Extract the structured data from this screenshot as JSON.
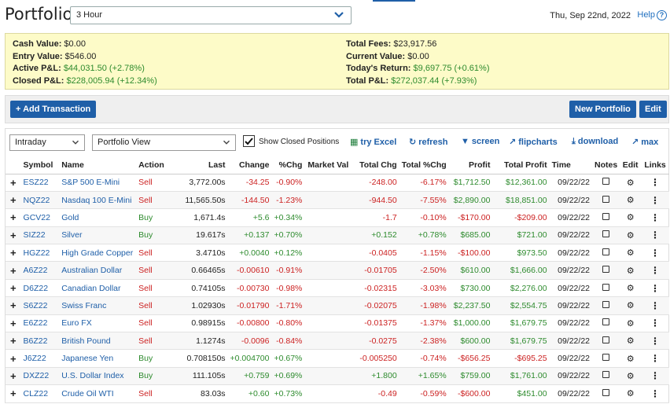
{
  "header": {
    "title": "Portfolio",
    "period": "3 Hour",
    "date": "Thu, Sep 22nd, 2022",
    "help": "Help"
  },
  "summary": {
    "left": [
      {
        "label": "Cash Value:",
        "value": "$0.00",
        "tone": ""
      },
      {
        "label": "Entry Value:",
        "value": "$546.00",
        "tone": ""
      },
      {
        "label": "Active P&L:",
        "value": "$44,031.50 (+2.78%)",
        "tone": "green"
      },
      {
        "label": "Closed P&L:",
        "value": "$228,005.94 (+12.34%)",
        "tone": "green"
      }
    ],
    "right": [
      {
        "label": "Total Fees:",
        "value": "$23,917.56",
        "tone": ""
      },
      {
        "label": "Current Value:",
        "value": "$0.00",
        "tone": ""
      },
      {
        "label": "Today's Return:",
        "value": "$9,697.75 (+0.61%)",
        "tone": "green"
      },
      {
        "label": "Total P&L:",
        "value": "$272,037.44 (+7.93%)",
        "tone": "green"
      }
    ]
  },
  "toolbar": {
    "add_transaction": "+ Add Transaction",
    "new_portfolio": "New Portfolio",
    "edit": "Edit"
  },
  "controls": {
    "time_select": "Intraday",
    "view_select": "Portfolio View",
    "show_closed_label": "Show Closed Positions",
    "show_closed_checked": true,
    "excel": "try Excel",
    "refresh": "refresh",
    "screen": "screen",
    "flipcharts": "flipcharts",
    "download": "download",
    "max": "max"
  },
  "table": {
    "headers": [
      "Symbol",
      "Name",
      "Action",
      "Last",
      "Change",
      "%Chg",
      "Market Val",
      "Total Chg",
      "Total %Chg",
      "Profit",
      "Total Profit",
      "Time",
      "Notes",
      "Edit",
      "Links"
    ],
    "rows": [
      {
        "symbol": "ESZ22",
        "name": "S&P 500 E-Mini",
        "action": "Sell",
        "last": "3,772.00s",
        "change": "-34.25",
        "pct": "-0.90%",
        "mval": "",
        "tchg": "-248.00",
        "tpct": "-6.17%",
        "profit": "$1,712.50",
        "tprofit": "$12,361.00",
        "time": "09/22/22"
      },
      {
        "symbol": "NQZ22",
        "name": "Nasdaq 100 E-Mini",
        "action": "Sell",
        "last": "11,565.50s",
        "change": "-144.50",
        "pct": "-1.23%",
        "mval": "",
        "tchg": "-944.50",
        "tpct": "-7.55%",
        "profit": "$2,890.00",
        "tprofit": "$18,851.00",
        "time": "09/22/22"
      },
      {
        "symbol": "GCV22",
        "name": "Gold",
        "action": "Buy",
        "last": "1,671.4s",
        "change": "+5.6",
        "pct": "+0.34%",
        "mval": "",
        "tchg": "-1.7",
        "tpct": "-0.10%",
        "profit": "-$170.00",
        "tprofit": "-$209.00",
        "time": "09/22/22"
      },
      {
        "symbol": "SIZ22",
        "name": "Silver",
        "action": "Buy",
        "last": "19.617s",
        "change": "+0.137",
        "pct": "+0.70%",
        "mval": "",
        "tchg": "+0.152",
        "tpct": "+0.78%",
        "profit": "$685.00",
        "tprofit": "$721.00",
        "time": "09/22/22"
      },
      {
        "symbol": "HGZ22",
        "name": "High Grade Copper",
        "action": "Sell",
        "last": "3.4710s",
        "change": "+0.0040",
        "pct": "+0.12%",
        "mval": "",
        "tchg": "-0.0405",
        "tpct": "-1.15%",
        "profit": "-$100.00",
        "tprofit": "$973.50",
        "time": "09/22/22"
      },
      {
        "symbol": "A6Z22",
        "name": "Australian Dollar",
        "action": "Sell",
        "last": "0.66465s",
        "change": "-0.00610",
        "pct": "-0.91%",
        "mval": "",
        "tchg": "-0.01705",
        "tpct": "-2.50%",
        "profit": "$610.00",
        "tprofit": "$1,666.00",
        "time": "09/22/22"
      },
      {
        "symbol": "D6Z22",
        "name": "Canadian Dollar",
        "action": "Sell",
        "last": "0.74105s",
        "change": "-0.00730",
        "pct": "-0.98%",
        "mval": "",
        "tchg": "-0.02315",
        "tpct": "-3.03%",
        "profit": "$730.00",
        "tprofit": "$2,276.00",
        "time": "09/22/22"
      },
      {
        "symbol": "S6Z22",
        "name": "Swiss Franc",
        "action": "Sell",
        "last": "1.02930s",
        "change": "-0.01790",
        "pct": "-1.71%",
        "mval": "",
        "tchg": "-0.02075",
        "tpct": "-1.98%",
        "profit": "$2,237.50",
        "tprofit": "$2,554.75",
        "time": "09/22/22"
      },
      {
        "symbol": "E6Z22",
        "name": "Euro FX",
        "action": "Sell",
        "last": "0.98915s",
        "change": "-0.00800",
        "pct": "-0.80%",
        "mval": "",
        "tchg": "-0.01375",
        "tpct": "-1.37%",
        "profit": "$1,000.00",
        "tprofit": "$1,679.75",
        "time": "09/22/22"
      },
      {
        "symbol": "B6Z22",
        "name": "British Pound",
        "action": "Sell",
        "last": "1.1274s",
        "change": "-0.0096",
        "pct": "-0.84%",
        "mval": "",
        "tchg": "-0.0275",
        "tpct": "-2.38%",
        "profit": "$600.00",
        "tprofit": "$1,679.75",
        "time": "09/22/22"
      },
      {
        "symbol": "J6Z22",
        "name": "Japanese Yen",
        "action": "Buy",
        "last": "0.708150s",
        "change": "+0.004700",
        "pct": "+0.67%",
        "mval": "",
        "tchg": "-0.005250",
        "tpct": "-0.74%",
        "profit": "-$656.25",
        "tprofit": "-$695.25",
        "time": "09/22/22"
      },
      {
        "symbol": "DXZ22",
        "name": "U.S. Dollar Index",
        "action": "Buy",
        "last": "111.105s",
        "change": "+0.759",
        "pct": "+0.69%",
        "mval": "",
        "tchg": "+1.800",
        "tpct": "+1.65%",
        "profit": "$759.00",
        "tprofit": "$1,761.00",
        "time": "09/22/22"
      },
      {
        "symbol": "CLZ22",
        "name": "Crude Oil WTI",
        "action": "Sell",
        "last": "83.03s",
        "change": "+0.60",
        "pct": "+0.73%",
        "mval": "",
        "tchg": "-0.49",
        "tpct": "-0.59%",
        "profit": "-$600.00",
        "tprofit": "$451.00",
        "time": "09/22/22"
      }
    ]
  },
  "colors": {
    "accent": "#1f5fa8",
    "gain": "#2e8b2e",
    "loss": "#cc2222",
    "summary_bg": "#fdfbc8"
  }
}
